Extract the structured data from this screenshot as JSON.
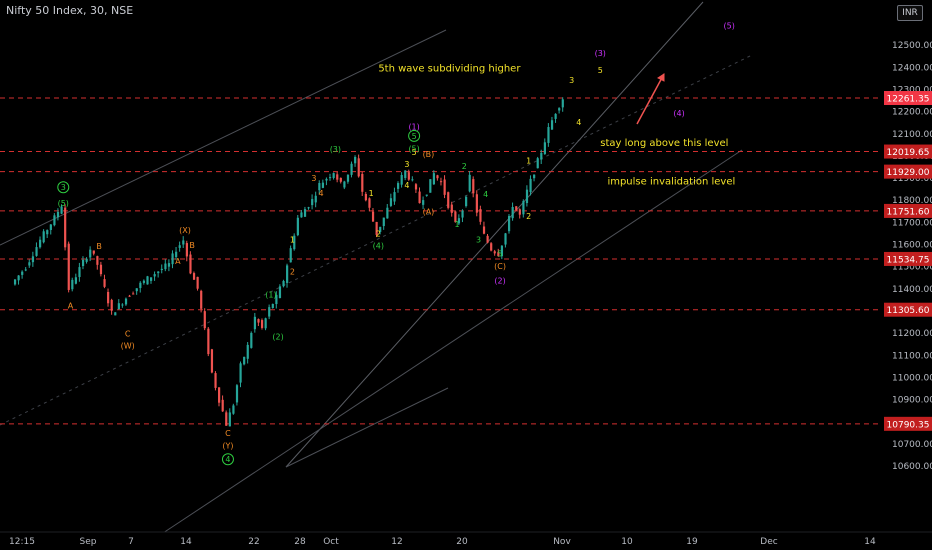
{
  "header": {
    "title": "Nifty 50 Index, 30, NSE",
    "currency": "INR"
  },
  "colors": {
    "up": "#26a69a",
    "down": "#ef5350",
    "level": "#d32f2f",
    "yellow": "#f2e22a",
    "green": "#2ecc40",
    "orange": "#f08a24",
    "magenta": "#cc33ff",
    "text": "#b8bcc4"
  },
  "chart_data": {
    "type": "candlestick",
    "title": "Nifty 50 Index, 30, NSE",
    "y_axis": {
      "ticks": [
        12500,
        12400,
        12300,
        12200,
        12100,
        12000,
        11900,
        11800,
        11700,
        11600,
        11500,
        11400,
        11300,
        11200,
        11100,
        11000,
        10900,
        10800,
        10700,
        10600
      ],
      "range": [
        10550,
        12640
      ]
    },
    "x_axis": {
      "ticks": [
        "12:15",
        "Sep",
        "7",
        "14",
        "22",
        "28",
        "Oct",
        "12",
        "20",
        "Nov",
        "10",
        "19",
        "Dec",
        "14"
      ]
    },
    "price_levels": [
      {
        "value": "12261.35",
        "current": true
      },
      {
        "value": "12019.65"
      },
      {
        "value": "11929.00"
      },
      {
        "value": "11751.60"
      },
      {
        "value": "11534.75"
      },
      {
        "value": "11305.60"
      },
      {
        "value": "10790.35"
      }
    ],
    "path": [
      [
        "Aug 25",
        11420
      ],
      [
        "Aug 27",
        11500
      ],
      [
        "Aug 29",
        11620
      ],
      [
        "Aug 31",
        11720
      ],
      [
        "Sep 1",
        11780
      ],
      [
        "Sep 2",
        11400
      ],
      [
        "Sep 3",
        11460
      ],
      [
        "Sep 4",
        11520
      ],
      [
        "Sep 5",
        11580
      ],
      [
        "Sep 6",
        11510
      ],
      [
        "Sep 8",
        11290
      ],
      [
        "Sep 10",
        11360
      ],
      [
        "Sep 12",
        11420
      ],
      [
        "Sep 14",
        11470
      ],
      [
        "Sep 16",
        11510
      ],
      [
        "Sep 17",
        11580
      ],
      [
        "Sep 18",
        11620
      ],
      [
        "Sep 19",
        11480
      ],
      [
        "Sep 20",
        11400
      ],
      [
        "Sep 21",
        11210
      ],
      [
        "Sep 22",
        11020
      ],
      [
        "Sep 23",
        10900
      ],
      [
        "Sep 24",
        10790
      ],
      [
        "Sep 25",
        10880
      ],
      [
        "Sep 26",
        11050
      ],
      [
        "Sep 27",
        11140
      ],
      [
        "Sep 28",
        11270
      ],
      [
        "Sep 29",
        11220
      ],
      [
        "Sep 30",
        11310
      ],
      [
        "Oct 1",
        11360
      ],
      [
        "Oct 2",
        11440
      ],
      [
        "Oct 3",
        11580
      ],
      [
        "Oct 4",
        11720
      ],
      [
        "Oct 6",
        11800
      ],
      [
        "Oct 7",
        11870
      ],
      [
        "Oct 9",
        11930
      ],
      [
        "Oct 10",
        11870
      ],
      [
        "Oct 11",
        11920
      ],
      [
        "Oct 12",
        11990
      ],
      [
        "Oct 13",
        11840
      ],
      [
        "Oct 14",
        11760
      ],
      [
        "Oct 15",
        11650
      ],
      [
        "Oct 16",
        11720
      ],
      [
        "Oct 17",
        11800
      ],
      [
        "Oct 18",
        11880
      ],
      [
        "Oct 19",
        11930
      ],
      [
        "Oct 20",
        11880
      ],
      [
        "Oct 21",
        11790
      ],
      [
        "Oct 22",
        11840
      ],
      [
        "Oct 23",
        11920
      ],
      [
        "Oct 24",
        11880
      ],
      [
        "Oct 25",
        11780
      ],
      [
        "Oct 26",
        11690
      ],
      [
        "Oct 27",
        11760
      ],
      [
        "Oct 28",
        11900
      ],
      [
        "Oct 29",
        11750
      ],
      [
        "Oct 30",
        11640
      ],
      [
        "Oct 31",
        11580
      ],
      [
        "Nov 1",
        11560
      ],
      [
        "Nov 2",
        11650
      ],
      [
        "Nov 3",
        11780
      ],
      [
        "Nov 4",
        11730
      ],
      [
        "Nov 5",
        11840
      ],
      [
        "Nov 6",
        11930
      ],
      [
        "Nov 7",
        12020
      ],
      [
        "Nov 8",
        12120
      ],
      [
        "Nov 9",
        12200
      ],
      [
        "Nov 10",
        12261
      ]
    ],
    "annotations": [
      {
        "text": "5th wave subdividing higher",
        "color": "yellow",
        "x": "Oct 15",
        "y": 12380,
        "size": 10
      },
      {
        "text": "stay long above this level",
        "color": "yellow",
        "x": "Nov 15",
        "y": 12045,
        "size": 10
      },
      {
        "text": "impulse invalidation level",
        "color": "yellow",
        "x": "Nov 16",
        "y": 11870,
        "size": 10
      }
    ],
    "wave_labels": [
      {
        "text": "3",
        "color": "green",
        "circle": true,
        "x": "Sep 1",
        "y": 11845
      },
      {
        "text": "(5)",
        "color": "green",
        "x": "Sep 1",
        "y": 11773
      },
      {
        "text": "A",
        "color": "orange",
        "x": "Sep 2",
        "y": 11310
      },
      {
        "text": "B",
        "color": "orange",
        "x": "Sep 6",
        "y": 11580
      },
      {
        "text": "C",
        "color": "orange",
        "x": "Sep 10",
        "y": 11185
      },
      {
        "text": "(W)",
        "color": "orange",
        "x": "Sep 10",
        "y": 11130
      },
      {
        "text": "(X)",
        "color": "orange",
        "x": "Sep 18",
        "y": 11652
      },
      {
        "text": "B",
        "color": "orange",
        "x": "Sep 19",
        "y": 11585
      },
      {
        "text": "A",
        "color": "orange",
        "x": "Sep 17",
        "y": 11513
      },
      {
        "text": "C",
        "color": "orange",
        "x": "Sep 24",
        "y": 10735
      },
      {
        "text": "(Y)",
        "color": "orange",
        "x": "Sep 24",
        "y": 10680
      },
      {
        "text": "4",
        "color": "green",
        "circle": true,
        "x": "Sep 24",
        "y": 10617
      },
      {
        "text": "(1)",
        "color": "green",
        "x": "Sep 30",
        "y": 11360
      },
      {
        "text": "(2)",
        "color": "green",
        "x": "Oct 1",
        "y": 11170
      },
      {
        "text": "1",
        "color": "yellow",
        "x": "Oct 3",
        "y": 11610
      },
      {
        "text": "2",
        "color": "orange",
        "x": "Oct 3",
        "y": 11465
      },
      {
        "text": "3",
        "color": "orange",
        "x": "Oct 6",
        "y": 11887
      },
      {
        "text": "4",
        "color": "orange",
        "x": "Oct 7",
        "y": 11818
      },
      {
        "text": "(3)",
        "color": "green",
        "x": "Oct 9",
        "y": 12017
      },
      {
        "text": "1",
        "color": "yellow",
        "x": "Oct 14",
        "y": 11820
      },
      {
        "text": "2",
        "color": "yellow",
        "x": "Oct 15",
        "y": 11635
      },
      {
        "text": "(4)",
        "color": "green",
        "x": "Oct 15",
        "y": 11582
      },
      {
        "text": "3",
        "color": "yellow",
        "x": "Oct 19",
        "y": 11950
      },
      {
        "text": "4",
        "color": "yellow",
        "x": "Oct 19",
        "y": 11855
      },
      {
        "text": "5",
        "color": "yellow",
        "x": "Oct 20",
        "y": 12005
      },
      {
        "text": "(5)",
        "color": "green",
        "x": "Oct 20",
        "y": 12020
      },
      {
        "text": "5",
        "color": "green",
        "circle": true,
        "x": "Oct 20",
        "y": 12077
      },
      {
        "text": "(1)",
        "color": "magenta",
        "x": "Oct 20",
        "y": 12120
      },
      {
        "text": "(B)",
        "color": "orange",
        "x": "Oct 22",
        "y": 11995
      },
      {
        "text": "(A)",
        "color": "orange",
        "x": "Oct 22",
        "y": 11735
      },
      {
        "text": "2",
        "color": "green",
        "x": "Oct 27",
        "y": 11940
      },
      {
        "text": "1",
        "color": "green",
        "x": "Oct 26",
        "y": 11680
      },
      {
        "text": "4",
        "color": "green",
        "x": "Oct 30",
        "y": 11815
      },
      {
        "text": "3",
        "color": "green",
        "x": "Oct 29",
        "y": 11610
      },
      {
        "text": "5",
        "color": "green",
        "x": "Nov 1",
        "y": 11545
      },
      {
        "text": "(C)",
        "color": "orange",
        "x": "Nov 1",
        "y": 11490
      },
      {
        "text": "(2)",
        "color": "magenta",
        "x": "Nov 1",
        "y": 11425
      },
      {
        "text": "1",
        "color": "yellow",
        "x": "Nov 5",
        "y": 11965
      },
      {
        "text": "2",
        "color": "yellow",
        "x": "Nov 5",
        "y": 11715
      },
      {
        "text": "3",
        "color": "yellow",
        "x": "Nov 11",
        "y": 12330
      },
      {
        "text": "4",
        "color": "yellow",
        "x": "Nov 12",
        "y": 12140
      },
      {
        "text": "5",
        "color": "yellow",
        "x": "Nov 15",
        "y": 12375
      },
      {
        "text": "(3)",
        "color": "magenta",
        "x": "Nov 15",
        "y": 12450
      },
      {
        "text": "(4)",
        "color": "magenta",
        "x": "Nov 26",
        "y": 12180
      },
      {
        "text": "(5)",
        "color": "magenta",
        "x": "Dec 3",
        "y": 12575
      }
    ]
  }
}
